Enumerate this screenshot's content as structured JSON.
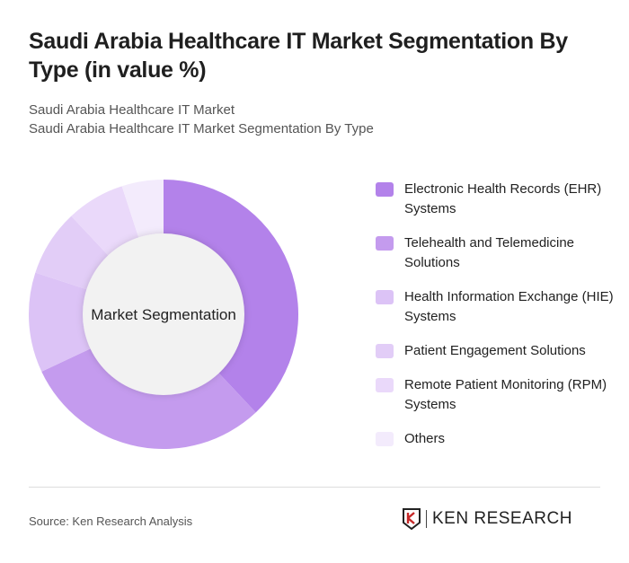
{
  "title": "Saudi Arabia Healthcare IT Market Segmentation By Type (in value %)",
  "subtitle_1": "Saudi Arabia Healthcare IT Market",
  "subtitle_2": "Saudi Arabia Healthcare IT Market Segmentation By Type",
  "source": "Source: Ken Research Analysis",
  "logo_text": "KEN RESEARCH",
  "chart_data": {
    "type": "pie",
    "variant": "donut",
    "center_label": "Market Segmentation",
    "legend_position": "right",
    "categories": [
      "Electronic Health Records (EHR) Systems",
      "Telehealth and Telemedicine Solutions",
      "Health Information Exchange (HIE) Systems",
      "Patient Engagement Solutions",
      "Remote Patient Monitoring (RPM) Systems",
      "Others"
    ],
    "values": [
      38,
      30,
      12,
      8,
      7,
      5
    ],
    "colors": [
      "#b382ea",
      "#c49bee",
      "#dcc3f6",
      "#e2cdf7",
      "#ead9fa",
      "#f3ebfc"
    ]
  }
}
